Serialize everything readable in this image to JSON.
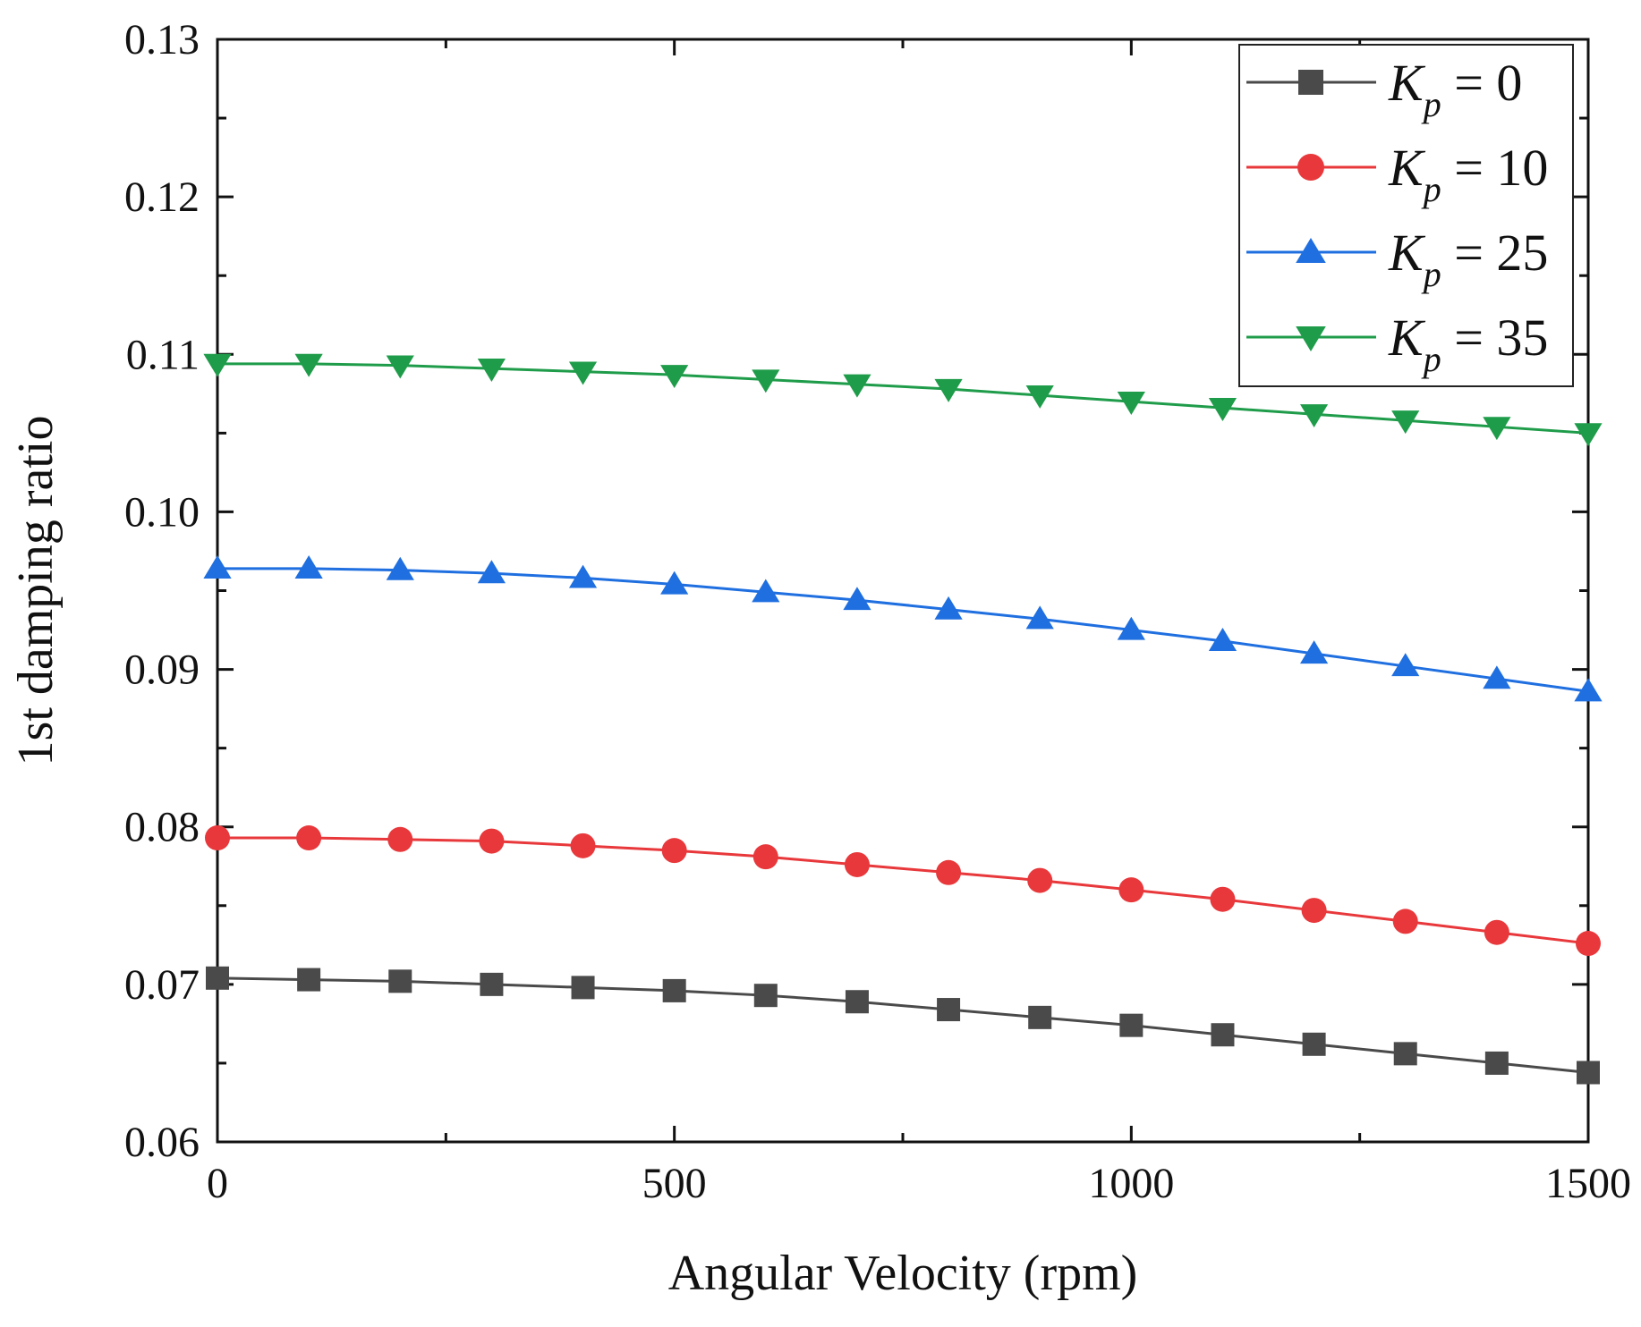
{
  "chart_data": {
    "type": "line",
    "title": "",
    "xlabel": "Angular Velocity (rpm)",
    "ylabel": "1st damping ratio",
    "xlim": [
      0,
      1500
    ],
    "ylim": [
      0.06,
      0.13
    ],
    "x_ticks": [
      "0",
      "500",
      "1000",
      "1500"
    ],
    "y_ticks": [
      "0.06",
      "0.07",
      "0.08",
      "0.09",
      "0.10",
      "0.11",
      "0.12",
      "0.13"
    ],
    "legend_position": "top-right",
    "x": [
      0,
      100,
      200,
      300,
      400,
      500,
      600,
      700,
      800,
      900,
      1000,
      1100,
      1200,
      1300,
      1400,
      1500
    ],
    "series": [
      {
        "name": "Kp = 0",
        "symbol": "K",
        "subscript": "p",
        "value_label": " = 0",
        "color": "#4a4a4a",
        "marker": "square",
        "values": [
          0.0704,
          0.0703,
          0.0702,
          0.07,
          0.0698,
          0.0696,
          0.0693,
          0.0689,
          0.0684,
          0.0679,
          0.0674,
          0.0668,
          0.0662,
          0.0656,
          0.065,
          0.0644
        ]
      },
      {
        "name": "Kp = 10",
        "symbol": "K",
        "subscript": "p",
        "value_label": " = 10",
        "color": "#e8383b",
        "marker": "circle",
        "values": [
          0.0793,
          0.0793,
          0.0792,
          0.0791,
          0.0788,
          0.0785,
          0.0781,
          0.0776,
          0.0771,
          0.0766,
          0.076,
          0.0754,
          0.0747,
          0.074,
          0.0733,
          0.0726
        ]
      },
      {
        "name": "Kp = 25",
        "symbol": "K",
        "subscript": "p",
        "value_label": " = 25",
        "color": "#1f6fe0",
        "marker": "triangle-up",
        "values": [
          0.0964,
          0.0964,
          0.0963,
          0.0961,
          0.0958,
          0.0954,
          0.0949,
          0.0944,
          0.0938,
          0.0932,
          0.0925,
          0.0918,
          0.091,
          0.0902,
          0.0894,
          0.0886
        ]
      },
      {
        "name": "Kp = 35",
        "symbol": "K",
        "subscript": "p",
        "value_label": " = 35",
        "color": "#1f9c4a",
        "marker": "triangle-down",
        "values": [
          0.1094,
          0.1094,
          0.1093,
          0.1091,
          0.1089,
          0.1087,
          0.1084,
          0.1081,
          0.1078,
          0.1074,
          0.107,
          0.1066,
          0.1062,
          0.1058,
          0.1054,
          0.105
        ]
      }
    ]
  }
}
